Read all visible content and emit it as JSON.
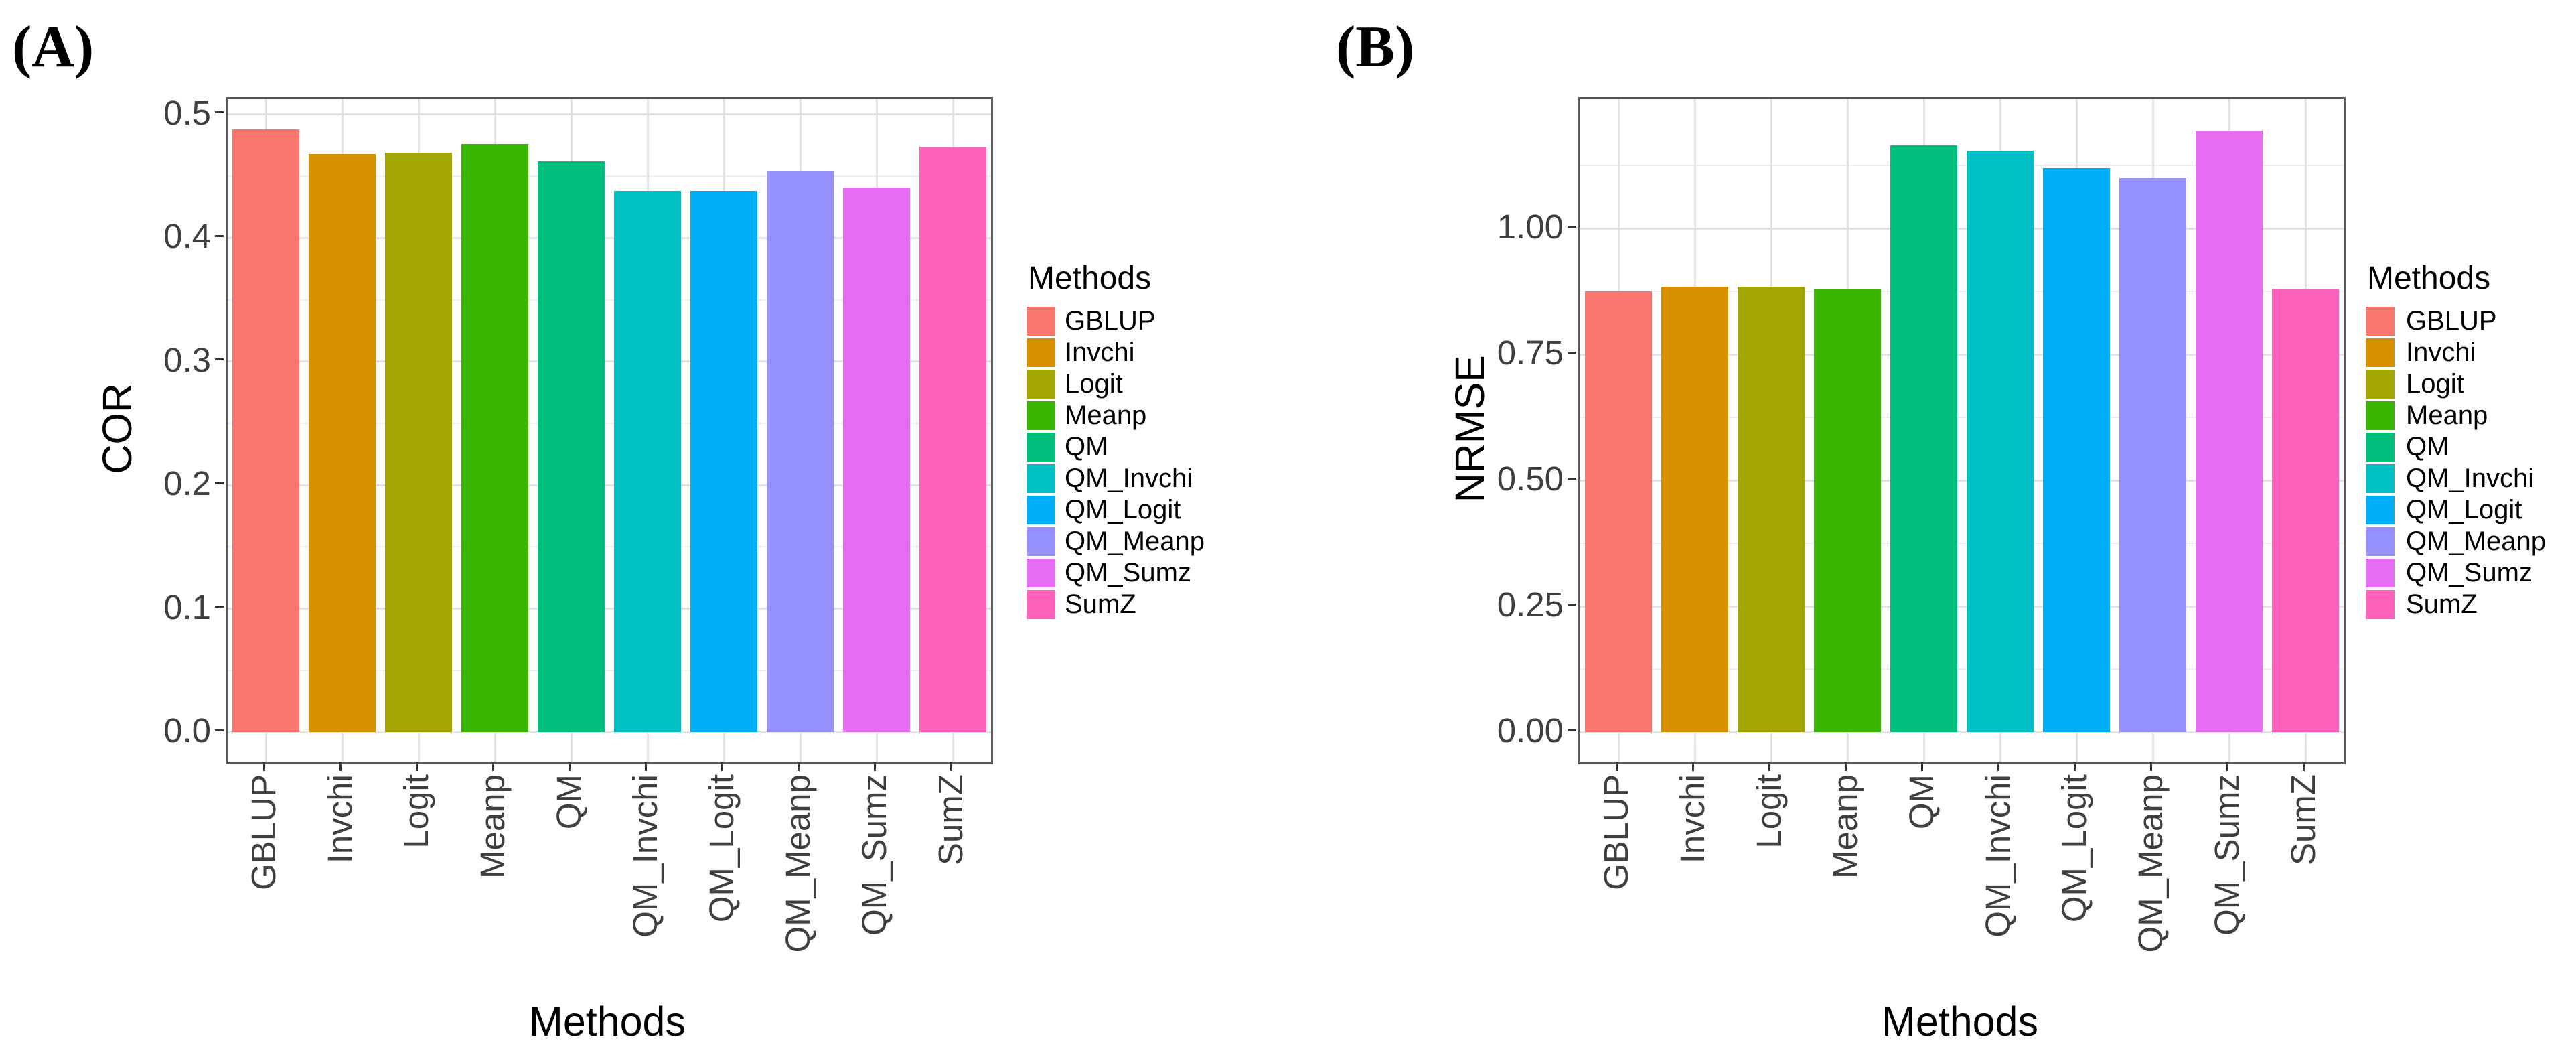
{
  "chart_data": [
    {
      "type": "bar",
      "panel_label": "(A)",
      "title": "",
      "xlabel": "Methods",
      "ylabel": "COR",
      "categories": [
        "GBLUP",
        "Invchi",
        "Logit",
        "Meanp",
        "QM",
        "QM_Invchi",
        "QM_Logit",
        "QM_Meanp",
        "QM_Sumz",
        "SumZ"
      ],
      "values": [
        0.488,
        0.468,
        0.469,
        0.476,
        0.462,
        0.438,
        0.438,
        0.454,
        0.441,
        0.474
      ],
      "colors": [
        "#F8766D",
        "#D89000",
        "#A3A500",
        "#39B600",
        "#00BF7D",
        "#00BFC4",
        "#00B0F6",
        "#9590FF",
        "#E76BF3",
        "#FF62BC"
      ],
      "ylim": [
        -0.0244,
        0.5124
      ],
      "yticks": [
        {
          "value": 0.0,
          "label": "0.0"
        },
        {
          "value": 0.1,
          "label": "0.1"
        },
        {
          "value": 0.2,
          "label": "0.2"
        },
        {
          "value": 0.3,
          "label": "0.3"
        },
        {
          "value": 0.4,
          "label": "0.4"
        },
        {
          "value": 0.5,
          "label": "0.5"
        }
      ],
      "yminor": [
        0.05,
        0.15,
        0.25,
        0.35,
        0.45
      ],
      "grid": true,
      "legend": {
        "title": "Methods",
        "position": "right",
        "entries": [
          {
            "label": "GBLUP",
            "color": "#F8766D"
          },
          {
            "label": "Invchi",
            "color": "#D89000"
          },
          {
            "label": "Logit",
            "color": "#A3A500"
          },
          {
            "label": "Meanp",
            "color": "#39B600"
          },
          {
            "label": "QM",
            "color": "#00BF7D"
          },
          {
            "label": "QM_Invchi",
            "color": "#00BFC4"
          },
          {
            "label": "QM_Logit",
            "color": "#00B0F6"
          },
          {
            "label": "QM_Meanp",
            "color": "#9590FF"
          },
          {
            "label": "QM_Sumz",
            "color": "#E76BF3"
          },
          {
            "label": "SumZ",
            "color": "#FF62BC"
          }
        ]
      }
    },
    {
      "type": "bar",
      "panel_label": "(B)",
      "title": "",
      "xlabel": "Methods",
      "ylabel": "NRMSE",
      "categories": [
        "GBLUP",
        "Invchi",
        "Logit",
        "Meanp",
        "QM",
        "QM_Invchi",
        "QM_Logit",
        "QM_Meanp",
        "QM_Sumz",
        "SumZ"
      ],
      "values": [
        0.875,
        0.885,
        0.885,
        0.879,
        1.165,
        1.155,
        1.12,
        1.1,
        1.195,
        0.88
      ],
      "colors": [
        "#F8766D",
        "#D89000",
        "#A3A500",
        "#39B600",
        "#00BF7D",
        "#00BFC4",
        "#00B0F6",
        "#9590FF",
        "#E76BF3",
        "#FF62BC"
      ],
      "ylim": [
        -0.0599,
        1.2569
      ],
      "yticks": [
        {
          "value": 0.0,
          "label": "0.00"
        },
        {
          "value": 0.25,
          "label": "0.25"
        },
        {
          "value": 0.5,
          "label": "0.50"
        },
        {
          "value": 0.75,
          "label": "0.75"
        },
        {
          "value": 1.0,
          "label": "1.00"
        }
      ],
      "yminor": [
        0.125,
        0.375,
        0.625,
        0.875,
        1.125
      ],
      "grid": true,
      "legend": {
        "title": "Methods",
        "position": "right",
        "entries": [
          {
            "label": "GBLUP",
            "color": "#F8766D"
          },
          {
            "label": "Invchi",
            "color": "#D89000"
          },
          {
            "label": "Logit",
            "color": "#A3A500"
          },
          {
            "label": "Meanp",
            "color": "#39B600"
          },
          {
            "label": "QM",
            "color": "#00BF7D"
          },
          {
            "label": "QM_Invchi",
            "color": "#00BFC4"
          },
          {
            "label": "QM_Logit",
            "color": "#00B0F6"
          },
          {
            "label": "QM_Meanp",
            "color": "#9590FF"
          },
          {
            "label": "QM_Sumz",
            "color": "#E76BF3"
          },
          {
            "label": "SumZ",
            "color": "#FF62BC"
          }
        ]
      }
    }
  ]
}
